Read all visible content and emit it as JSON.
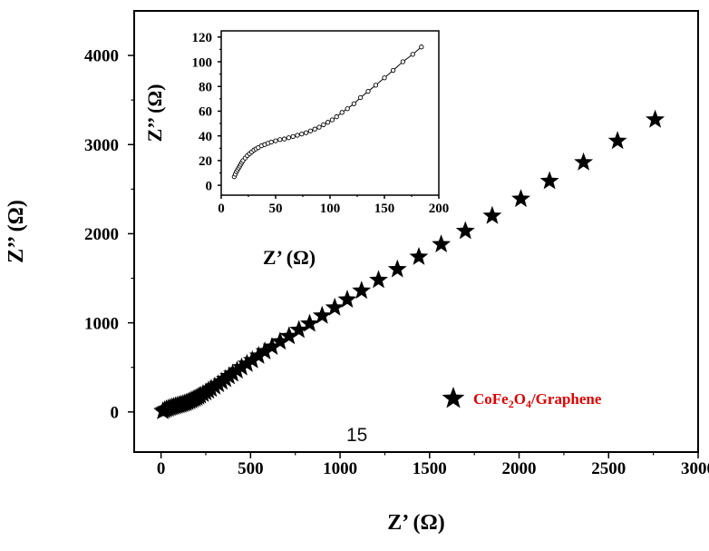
{
  "page_number": "15",
  "chart_data": [
    {
      "id": "main",
      "type": "scatter",
      "title": "",
      "xlabel": "Z’ (Ω)",
      "ylabel": "Z’’ (Ω)",
      "xlim": [
        -150,
        3000
      ],
      "ylim": [
        -450,
        4500
      ],
      "xticks": [
        0,
        500,
        1000,
        1500,
        2000,
        2500,
        3000
      ],
      "yticks": [
        0,
        1000,
        2000,
        3000,
        4000
      ],
      "xtick_labels": [
        "0",
        "500",
        "1000",
        "1500",
        "2000",
        "2500",
        "3000"
      ],
      "ytick_labels": [
        "0",
        "1000",
        "2000",
        "3000",
        "4000"
      ],
      "grid": false,
      "legend_position": "bottom-right",
      "marker": "star",
      "series": [
        {
          "name": "CoFe2O4/Graphene",
          "legend": {
            "base": "CoFe",
            "sub1": "2",
            "mid": "O",
            "sub2": "4",
            "tail": "/Graphene"
          },
          "color": "#000000",
          "legend_text_color": "#e00000",
          "x": [
            10,
            20,
            30,
            40,
            50,
            60,
            70,
            80,
            90,
            100,
            110,
            120,
            130,
            140,
            150,
            160,
            170,
            180,
            190,
            200,
            210,
            220,
            235,
            250,
            265,
            280,
            300,
            320,
            340,
            360,
            380,
            400,
            425,
            450,
            480,
            510,
            545,
            580,
            620,
            665,
            715,
            770,
            830,
            900,
            970,
            1040,
            1120,
            1215,
            1320,
            1440,
            1565,
            1700,
            1850,
            2010,
            2170,
            2360,
            2550,
            2760
          ],
          "y": [
            8,
            20,
            30,
            38,
            45,
            52,
            58,
            64,
            70,
            76,
            82,
            88,
            95,
            102,
            110,
            120,
            130,
            140,
            150,
            160,
            172,
            185,
            202,
            220,
            240,
            260,
            285,
            312,
            340,
            370,
            400,
            430,
            465,
            500,
            540,
            580,
            630,
            680,
            730,
            790,
            850,
            920,
            990,
            1080,
            1170,
            1260,
            1360,
            1480,
            1600,
            1740,
            1880,
            2030,
            2200,
            2390,
            2590,
            2800,
            3040,
            3280
          ]
        }
      ]
    },
    {
      "id": "inset",
      "type": "line",
      "title": "",
      "xlabel": "Z’ (Ω)",
      "ylabel": "Z’’ (Ω)",
      "xlim": [
        0,
        200
      ],
      "ylim": [
        -8,
        125
      ],
      "xticks": [
        0,
        50,
        100,
        150,
        200
      ],
      "yticks": [
        0,
        20,
        40,
        60,
        80,
        100,
        120
      ],
      "xtick_labels": [
        "0",
        "50",
        "100",
        "150",
        "200"
      ],
      "ytick_labels": [
        "0",
        "20",
        "40",
        "60",
        "80",
        "100",
        "120"
      ],
      "grid": false,
      "marker": "circle",
      "series": [
        {
          "color": "#000000",
          "x": [
            12,
            13,
            14,
            15,
            16,
            17,
            18,
            19,
            20,
            22,
            24,
            26,
            28,
            30,
            32,
            34,
            37,
            40,
            43,
            46,
            50,
            54,
            58,
            62,
            66,
            70,
            74,
            78,
            82,
            86,
            90,
            94,
            98,
            102,
            106,
            111,
            116,
            122,
            128,
            135,
            142,
            150,
            158,
            167,
            176,
            184
          ],
          "y": [
            7,
            9,
            11,
            12.5,
            14,
            15.5,
            17,
            18.5,
            20,
            22,
            24,
            25.5,
            27,
            28.5,
            29.5,
            30.5,
            32,
            33,
            34,
            35,
            36,
            37,
            37.5,
            38.5,
            39.5,
            40.5,
            41.5,
            42.5,
            44,
            45.5,
            47,
            49,
            51,
            53,
            55.5,
            59,
            62,
            66,
            71,
            76,
            81,
            87,
            93,
            100,
            106,
            112
          ]
        }
      ]
    }
  ]
}
